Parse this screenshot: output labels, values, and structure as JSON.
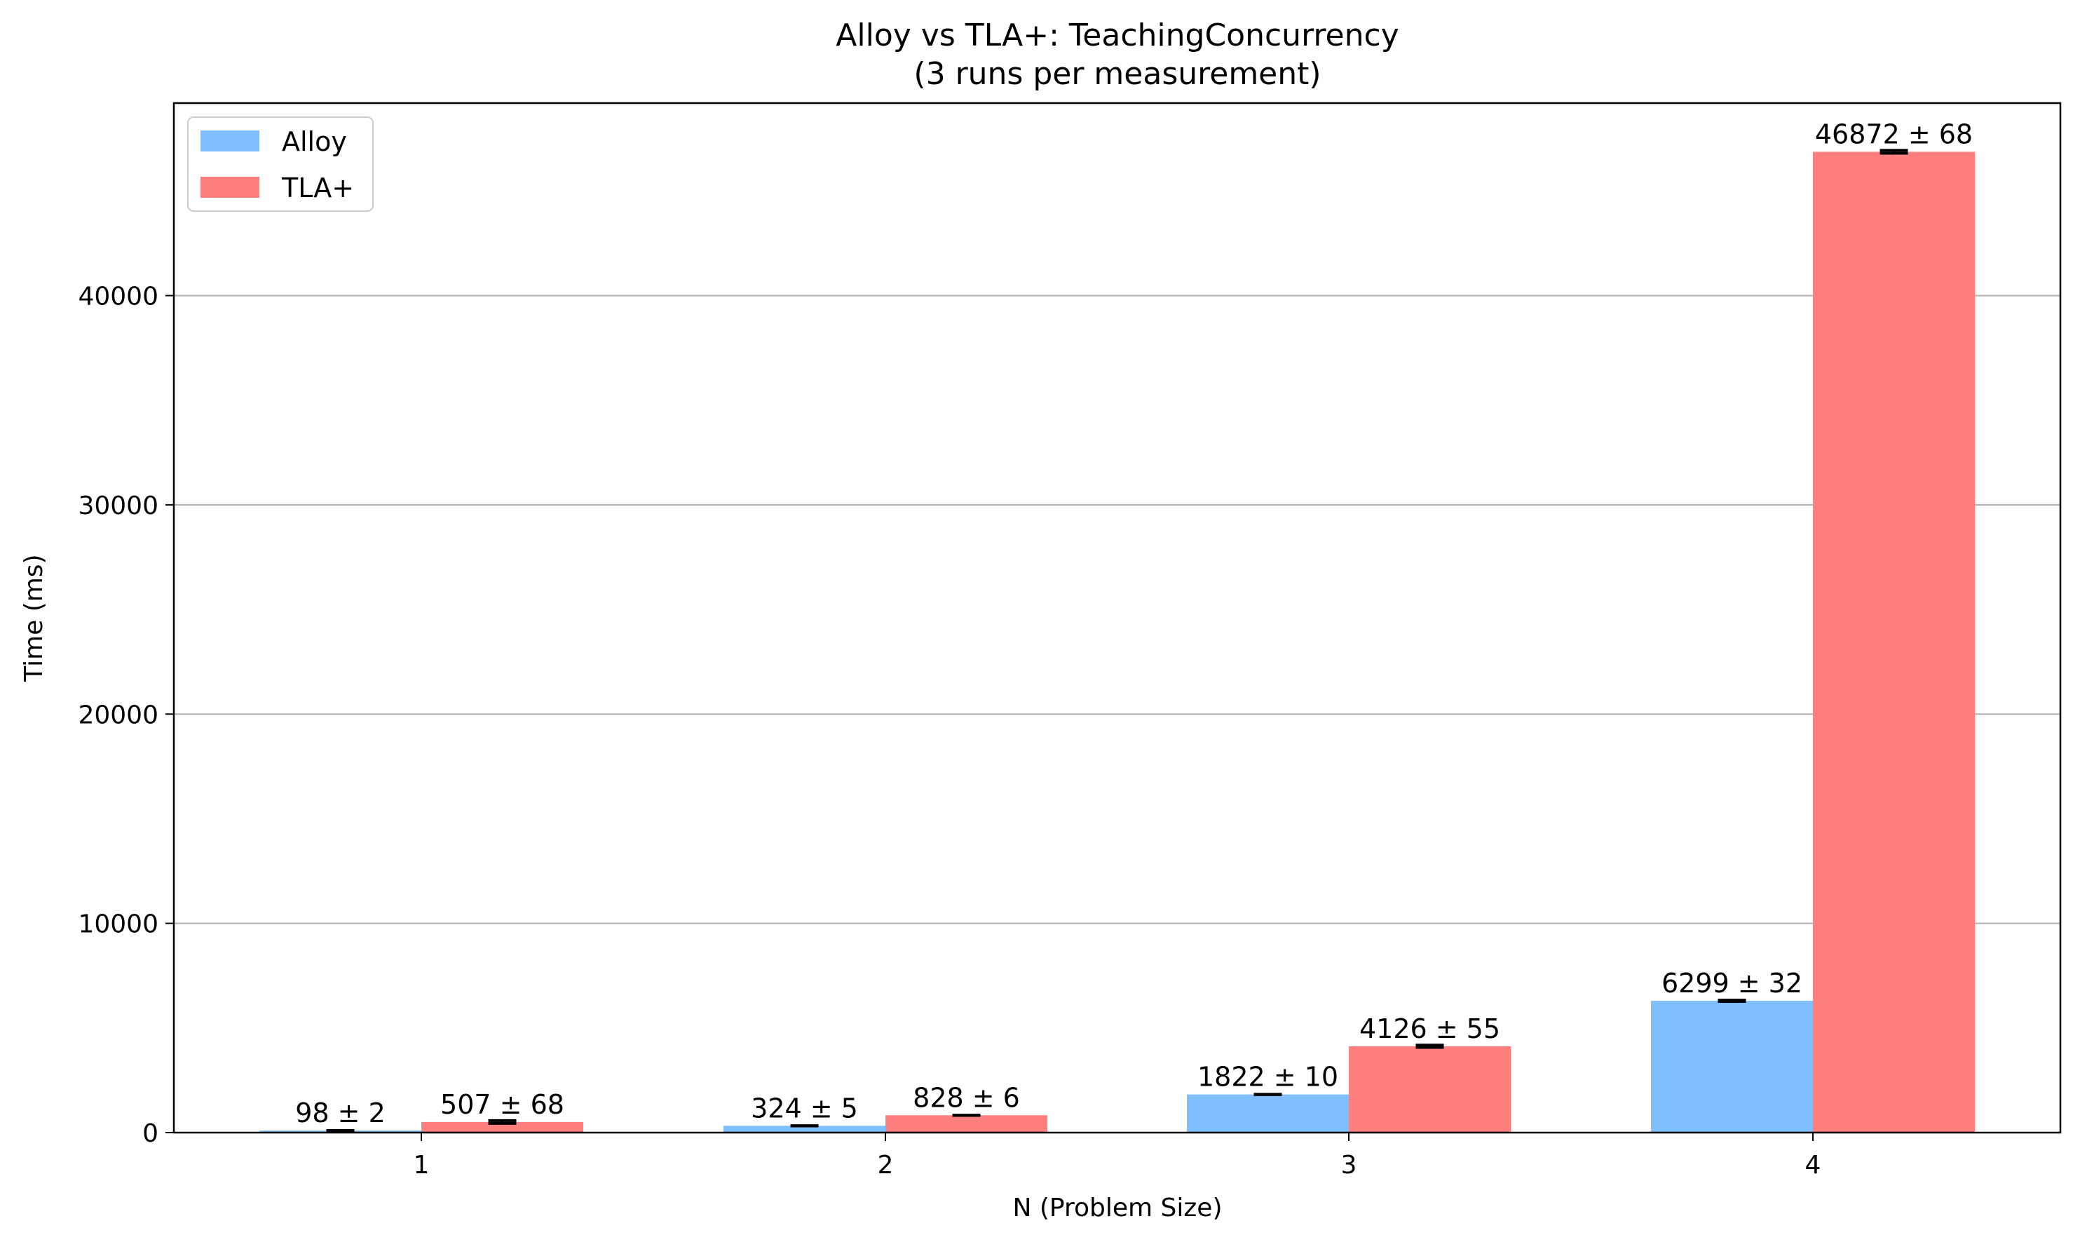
{
  "chart_data": {
    "type": "bar",
    "title": "Alloy vs TLA+: TeachingConcurrency",
    "subtitle": "(3 runs per measurement)",
    "xlabel": "N (Problem Size)",
    "ylabel": "Time (ms)",
    "categories": [
      "1",
      "2",
      "3",
      "4"
    ],
    "ylim": [
      0,
      49200
    ],
    "yticks": [
      0,
      10000,
      20000,
      30000,
      40000
    ],
    "grid": "y",
    "legend": "top-left",
    "series": [
      {
        "name": "Alloy",
        "color": "#80bfff",
        "values": [
          98,
          324,
          1822,
          6299
        ],
        "errors": [
          2,
          5,
          10,
          32
        ],
        "labels": [
          "98 ± 2",
          "324 ± 5",
          "1822 ± 10",
          "6299 ± 32"
        ]
      },
      {
        "name": "TLA+",
        "color": "#ff7f7f",
        "values": [
          507,
          828,
          4126,
          46872
        ],
        "errors": [
          68,
          6,
          55,
          68
        ],
        "labels": [
          "507 ± 68",
          "828 ± 6",
          "4126 ± 55",
          "46872 ± 68"
        ]
      }
    ]
  }
}
